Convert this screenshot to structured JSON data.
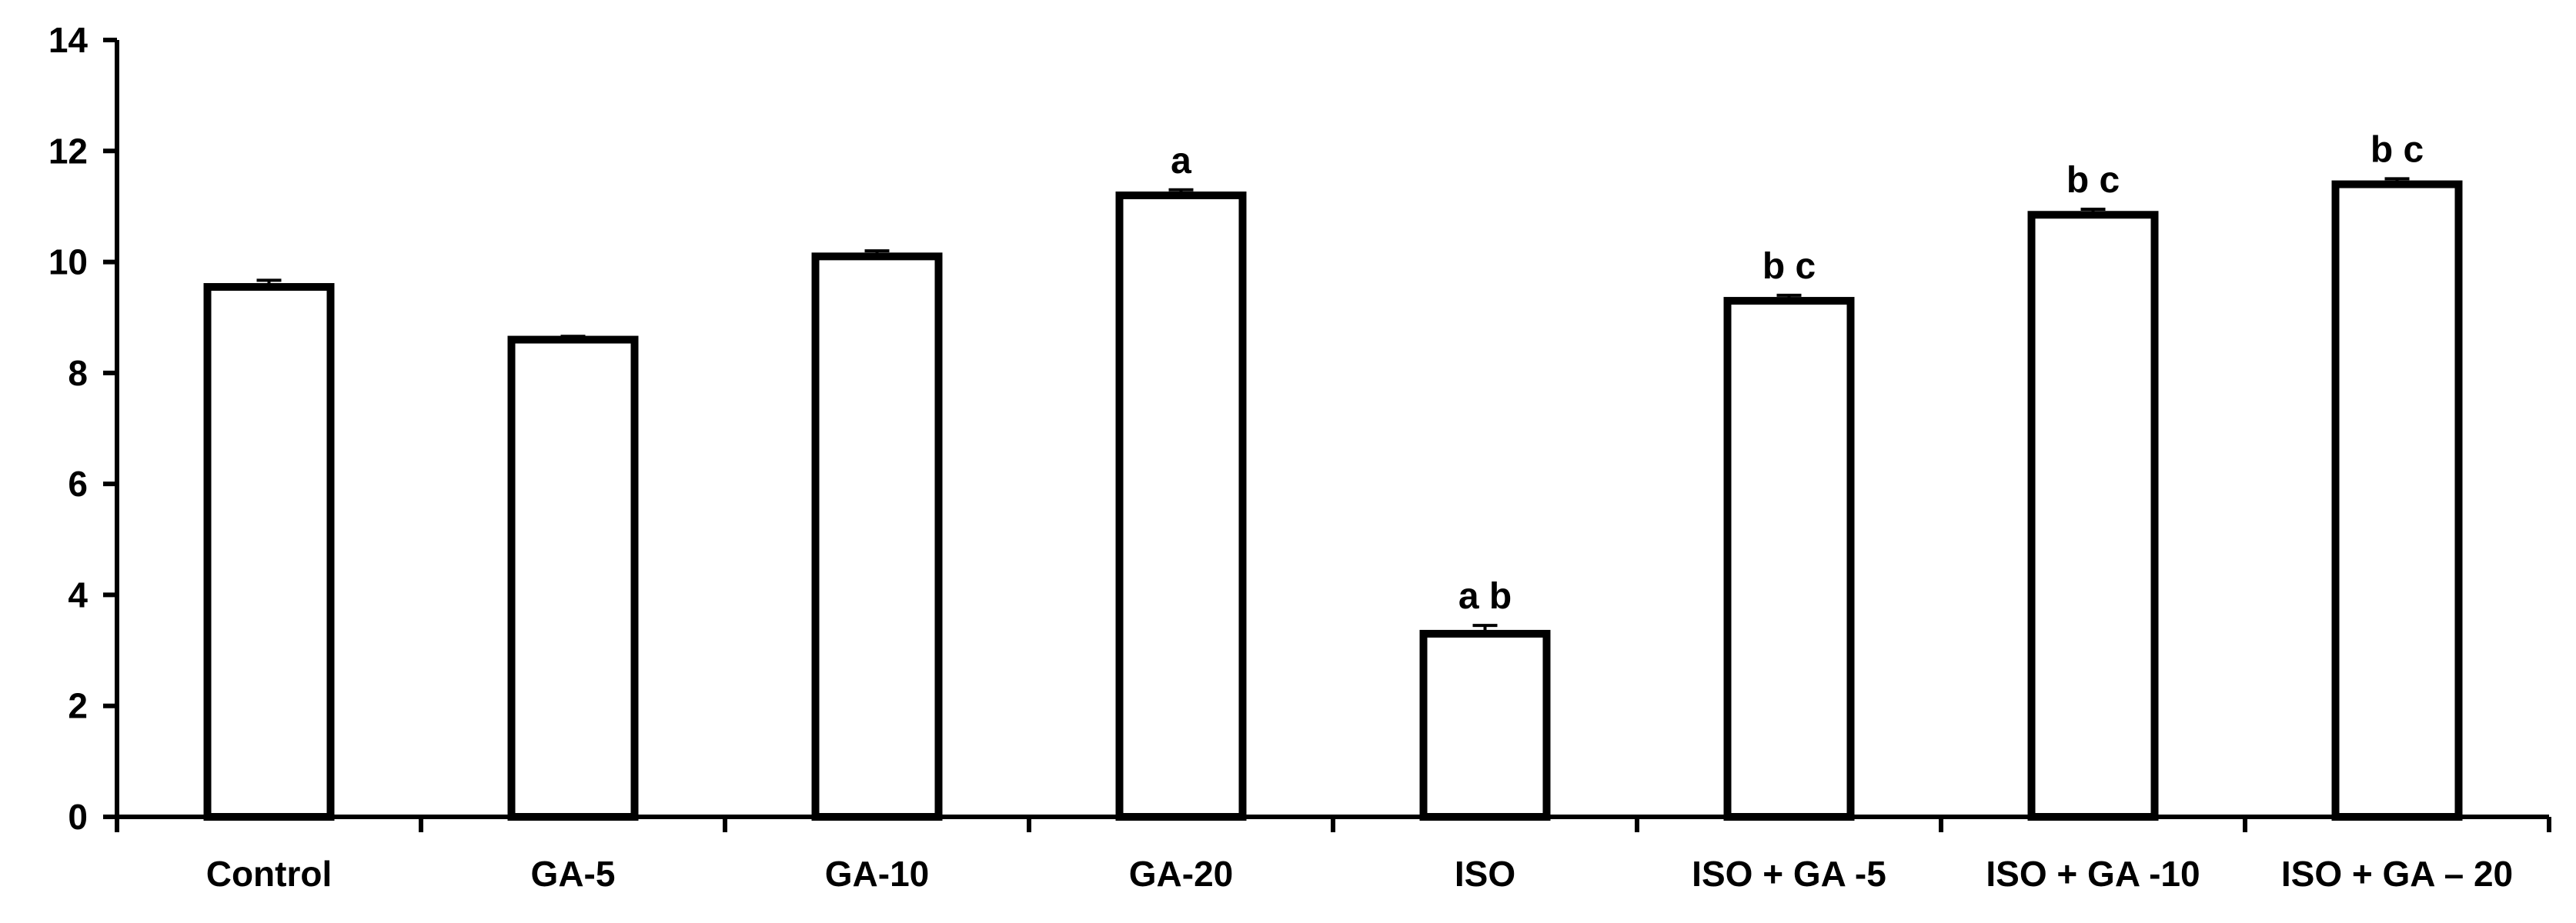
{
  "chart_data": {
    "type": "bar",
    "title": "",
    "xlabel": "",
    "ylabel": "",
    "categories": [
      "Control",
      "GA-5",
      "GA-10",
      "GA-20",
      "ISO",
      "ISO + GA -5",
      "ISO + GA -10",
      "ISO + GA – 20"
    ],
    "values": [
      9.55,
      8.6,
      10.1,
      11.2,
      3.3,
      9.3,
      10.85,
      11.4
    ],
    "errors": [
      0.12,
      0.06,
      0.1,
      0.1,
      0.15,
      0.1,
      0.1,
      0.1
    ],
    "annotations": [
      "",
      "",
      "",
      "a",
      "a b",
      "b c",
      "b c",
      "b c"
    ],
    "ylim": [
      0,
      14
    ],
    "yticks": [
      0,
      2,
      4,
      6,
      8,
      10,
      12,
      14
    ],
    "grid": false,
    "legend": "none",
    "colors": {
      "bar_fill": "#ffffff",
      "bar_stroke": "#000000"
    }
  }
}
